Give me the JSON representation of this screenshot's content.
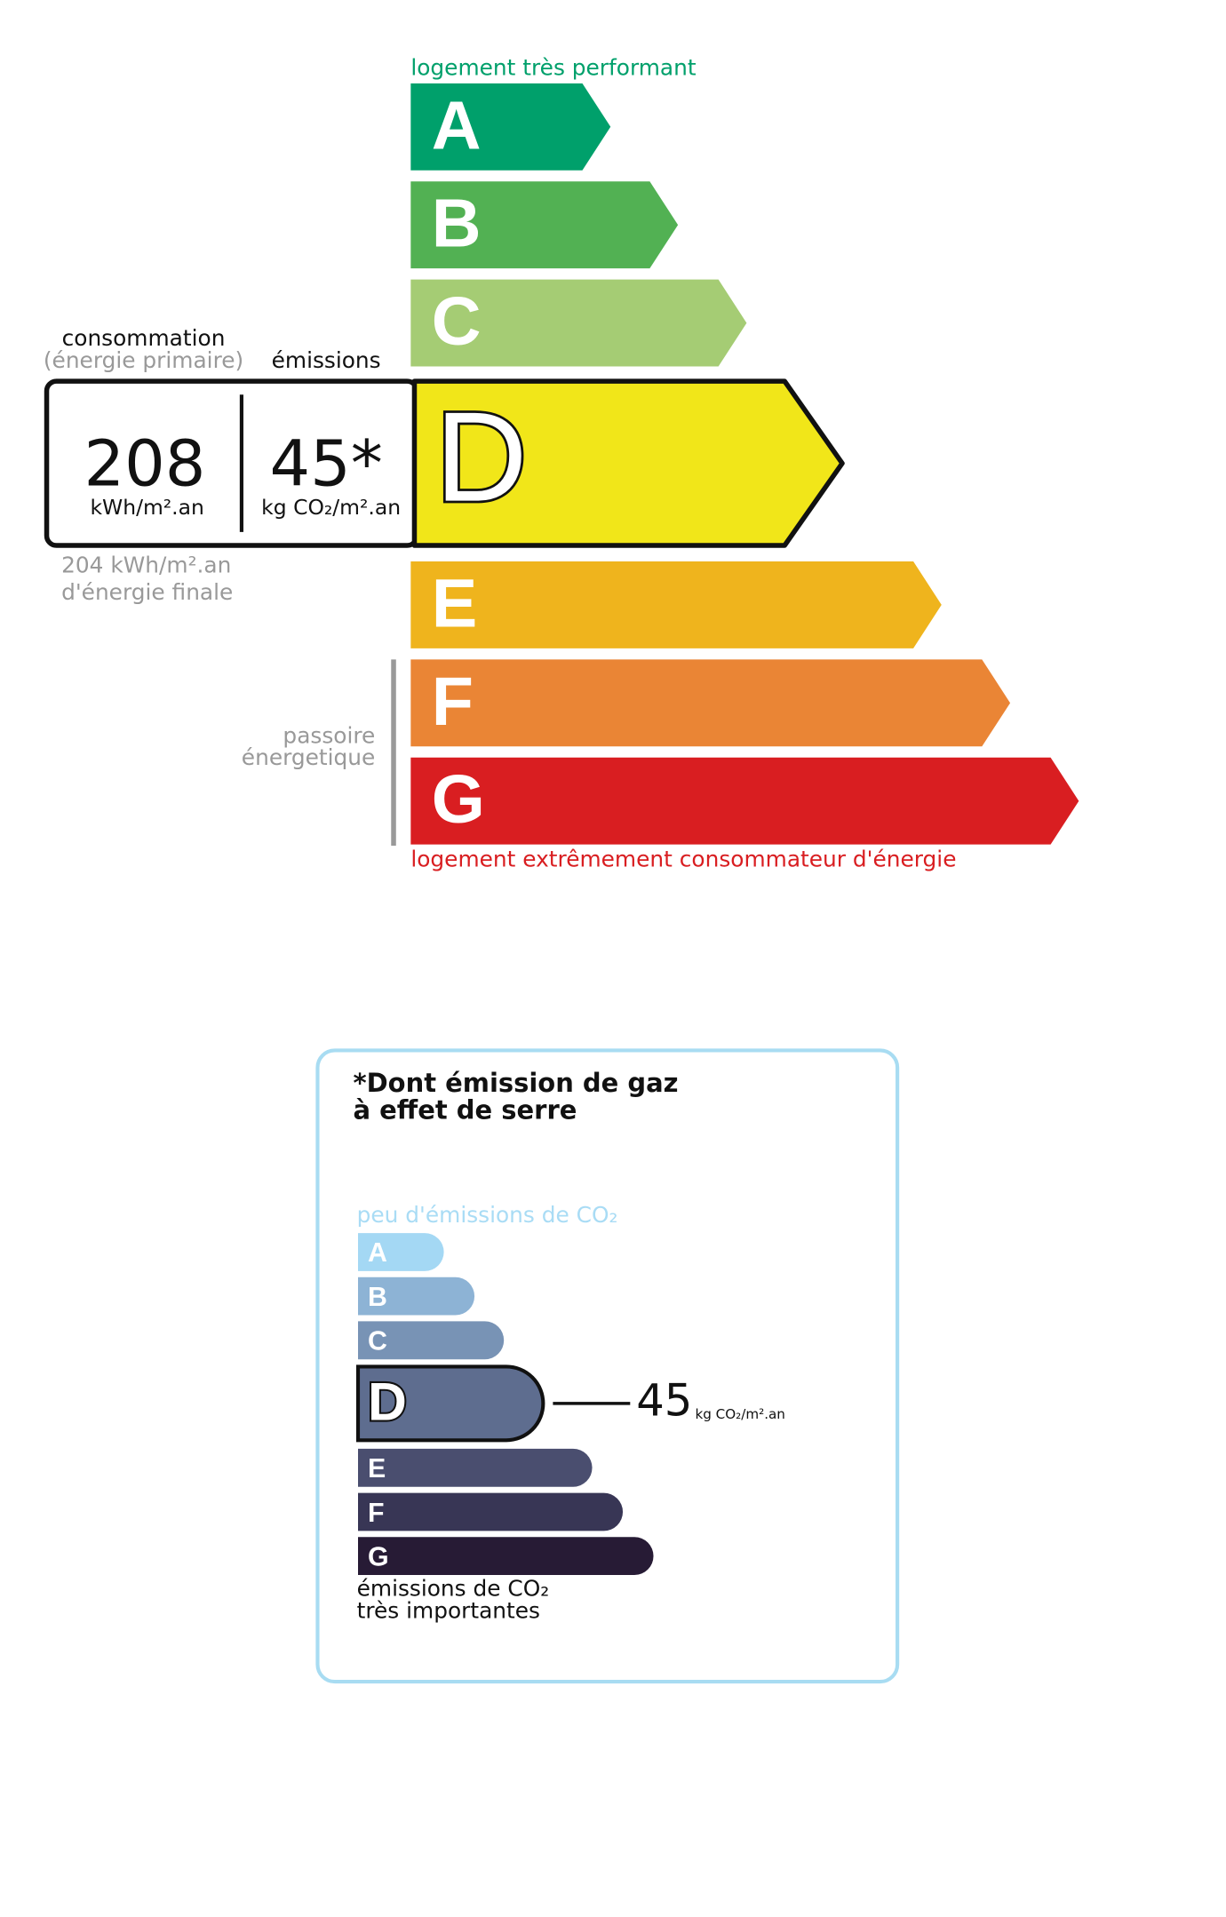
{
  "energy_label": {
    "top_label": "logement très performant",
    "bottom_label": "logement extrêmement consommateur d'énergie",
    "classes": [
      "A",
      "B",
      "C",
      "D",
      "E",
      "F",
      "G"
    ],
    "consumption_header": "consommation",
    "consumption_subheader": "(énergie primaire)",
    "emissions_header": "émissions",
    "consumption_value": "208",
    "consumption_unit": "kWh/m².an",
    "emissions_value": "45*",
    "emissions_unit": "kg CO₂/m².an",
    "final_energy_value": "204 kWh/m².an",
    "final_energy_label": "d'énergie finale",
    "sieve_label_1": "passoire",
    "sieve_label_2": "énergetique"
  },
  "ghg_label": {
    "title_1": "*Dont émission de gaz",
    "title_2": "à effet de serre",
    "top_label": "peu d'émissions de CO₂",
    "classes": [
      "A",
      "B",
      "C",
      "D",
      "E",
      "F",
      "G"
    ],
    "value": "45",
    "unit": "kg CO₂/m².an",
    "bottom_label_1": "émissions de CO₂",
    "bottom_label_2": "très importantes"
  }
}
